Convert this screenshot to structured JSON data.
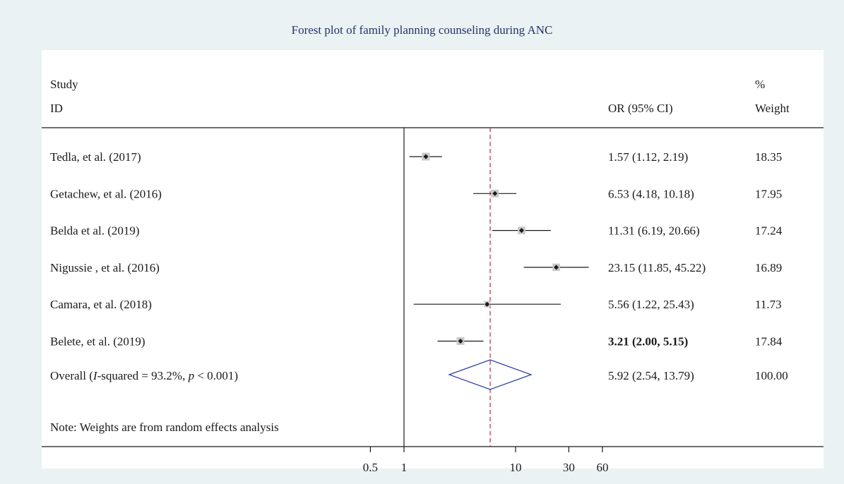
{
  "colors": {
    "background": "#eaf2f3",
    "panel": "#ffffff",
    "title": "#23336b",
    "text": "#1a1a1a",
    "box": "#c8c8c8",
    "reference_line": "#b0303a",
    "diamond": "#2b3c9c"
  },
  "chart_data": {
    "type": "forest",
    "title": "Forest plot of family planning counseling during ANC",
    "header": {
      "study_line1": "Study",
      "study_line2": "ID",
      "effect_label": "OR (95% CI)",
      "weight_line1": "%",
      "weight_line2": "Weight"
    },
    "x_scale": "log",
    "xticks": [
      0.5,
      1,
      10,
      30,
      60
    ],
    "xlim": [
      0.5,
      60
    ],
    "null_line": 1,
    "overall_line": 5.92,
    "studies": [
      {
        "label": "Tedla, et al. (2017)",
        "or": 1.57,
        "lower": 1.12,
        "upper": 2.19,
        "text": "1.57 (1.12, 2.19)",
        "weight": "18.35",
        "weight_value": 18.35,
        "bold": false
      },
      {
        "label": "Getachew, et al. (2016)",
        "or": 6.53,
        "lower": 4.18,
        "upper": 10.18,
        "text": "6.53 (4.18, 10.18)",
        "weight": "17.95",
        "weight_value": 17.95,
        "bold": false
      },
      {
        "label": "Belda et al. (2019)",
        "or": 11.31,
        "lower": 6.19,
        "upper": 20.66,
        "text": "11.31 (6.19, 20.66)",
        "weight": "17.24",
        "weight_value": 17.24,
        "bold": false
      },
      {
        "label": "Nigussie , et al. (2016)",
        "or": 23.15,
        "lower": 11.85,
        "upper": 45.22,
        "text": "23.15 (11.85, 45.22)",
        "weight": "16.89",
        "weight_value": 16.89,
        "bold": false
      },
      {
        "label": "Camara, et al. (2018)",
        "or": 5.56,
        "lower": 1.22,
        "upper": 25.43,
        "text": "5.56 (1.22, 25.43)",
        "weight": "11.73",
        "weight_value": 11.73,
        "bold": false
      },
      {
        "label": "Belete, et al. (2019)",
        "or": 3.21,
        "lower": 2.0,
        "upper": 5.15,
        "text": "3.21 (2.00, 5.15)",
        "weight": "17.84",
        "weight_value": 17.84,
        "bold": true
      }
    ],
    "overall": {
      "label_prefix": "Overall (",
      "label_i": "I",
      "label_mid": "-squared = 93.2%, ",
      "label_p": "p",
      "label_suffix": " < 0.001)",
      "or": 5.92,
      "lower": 2.54,
      "upper": 13.79,
      "text": "5.92 (2.54, 13.79)",
      "weight": "100.00"
    },
    "note": "Note: Weights are from random effects analysis"
  }
}
